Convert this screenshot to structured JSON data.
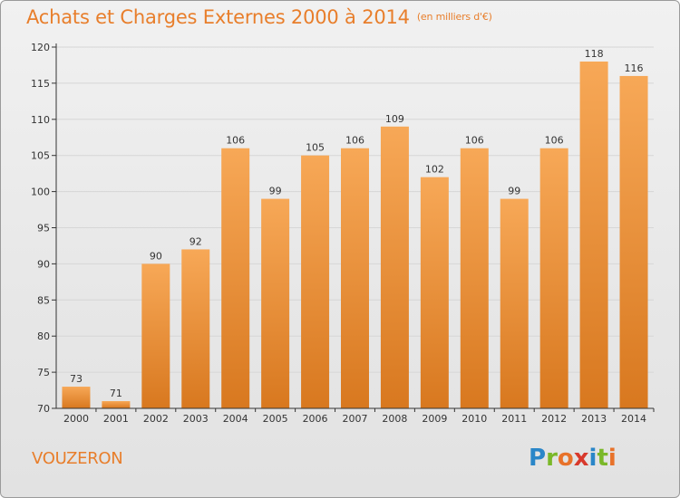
{
  "header": {
    "title": "Achats et Charges Externes 2000 à 2014",
    "unit": "(en milliers d'€)"
  },
  "footer": {
    "place": "VOUZERON",
    "logo": [
      "P",
      "r",
      "o",
      "x",
      "i",
      "t",
      "i"
    ],
    "logo_colors": [
      "#2a86c8",
      "#7ab829",
      "#e8722a",
      "#d8392c",
      "#2a86c8",
      "#7ab829",
      "#e8722a"
    ]
  },
  "colors": {
    "bar_top": "#f7a857",
    "bar_bottom": "#d8781f",
    "axis": "#333333",
    "grid": "#d6d6d6",
    "text": "#333333"
  },
  "chart_data": {
    "type": "bar",
    "categories": [
      "2000",
      "2001",
      "2002",
      "2003",
      "2004",
      "2005",
      "2006",
      "2007",
      "2008",
      "2009",
      "2010",
      "2011",
      "2012",
      "2013",
      "2014"
    ],
    "values": [
      73,
      71,
      90,
      92,
      106,
      99,
      105,
      106,
      109,
      102,
      106,
      99,
      106,
      118,
      116
    ],
    "ylim": [
      70,
      120
    ],
    "yticks": [
      70,
      75,
      80,
      85,
      90,
      95,
      100,
      105,
      110,
      115,
      120
    ],
    "grid": true
  }
}
